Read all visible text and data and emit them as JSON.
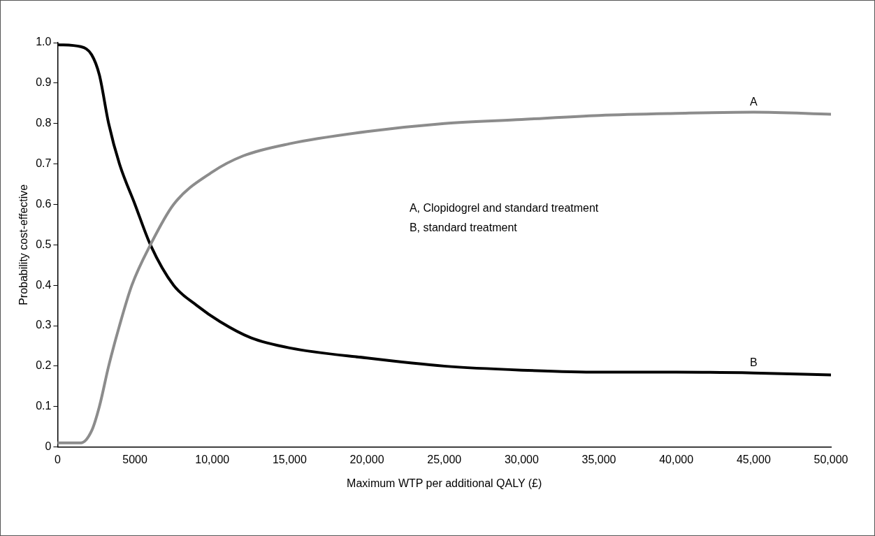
{
  "chart_data": {
    "type": "line",
    "xlabel": "Maximum WTP per additional QALY (£)",
    "ylabel": "Probability cost-effective",
    "xlim": [
      0,
      50000
    ],
    "xticks": [
      0,
      5000,
      {
        "value": 10000,
        "label": "10,000"
      },
      {
        "value": 15000,
        "label": "15,000"
      },
      {
        "value": 20000,
        "label": "20,000"
      },
      {
        "value": 25000,
        "label": "25,000"
      },
      {
        "value": 30000,
        "label": "30,000"
      },
      {
        "value": 35000,
        "label": "35,000"
      },
      {
        "value": 40000,
        "label": "40,000"
      },
      {
        "value": 45000,
        "label": "45,000"
      },
      {
        "value": 50000,
        "label": "50,000"
      }
    ],
    "ylim": [
      0,
      1
    ],
    "yticks": [
      0,
      0.1,
      0.2,
      0.3,
      0.4,
      0.5,
      0.6,
      0.7,
      0.8,
      0.9,
      {
        "value": 1,
        "label": "1.0"
      }
    ],
    "grid": false,
    "legend": false,
    "series": [
      {
        "name": "A",
        "color": "#8c8c8c",
        "x": [
          0,
          1500,
          2200,
          2700,
          3300,
          4000,
          4800,
          6000,
          7500,
          10000,
          12000,
          15000,
          20000,
          25000,
          30000,
          35000,
          40000,
          45000,
          50000
        ],
        "values": [
          0.01,
          0.01,
          0.04,
          0.1,
          0.2,
          0.3,
          0.4,
          0.5,
          0.6,
          0.68,
          0.72,
          0.75,
          0.78,
          0.8,
          0.81,
          0.82,
          0.825,
          0.828,
          0.823
        ]
      },
      {
        "name": "B",
        "color": "#000000",
        "x": [
          0,
          1500,
          2200,
          2700,
          3300,
          4000,
          5000,
          6000,
          7500,
          9000,
          10500,
          12500,
          15000,
          20000,
          25000,
          30000,
          35000,
          40000,
          45000,
          50000
        ],
        "values": [
          0.995,
          0.99,
          0.97,
          0.92,
          0.8,
          0.7,
          0.6,
          0.5,
          0.4,
          0.35,
          0.31,
          0.27,
          0.245,
          0.22,
          0.2,
          0.19,
          0.185,
          0.185,
          0.183,
          0.178
        ]
      }
    ],
    "annotations": [
      "A, Clopidogrel and standard treatment",
      "B, standard treatment"
    ]
  }
}
